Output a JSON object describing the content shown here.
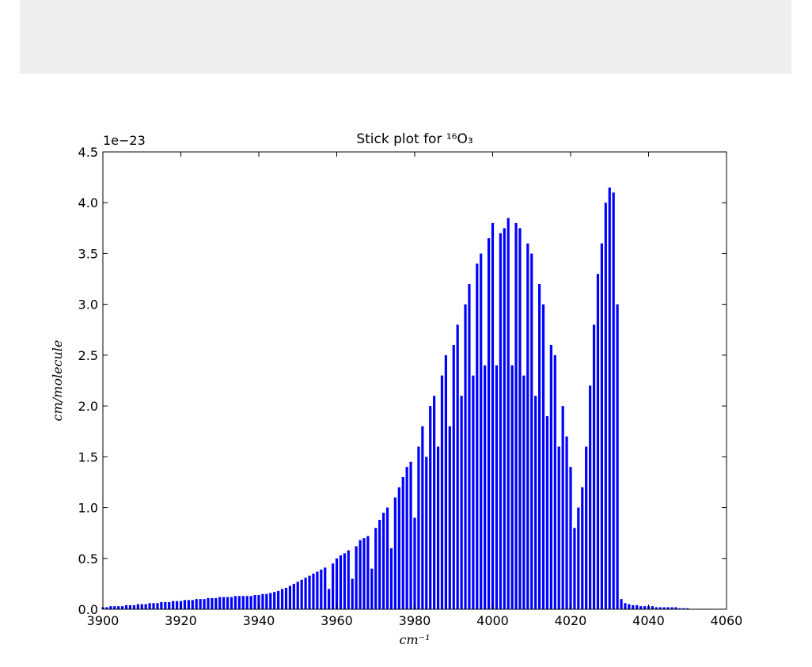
{
  "chart_data": {
    "type": "stick",
    "title": "Stick plot for ¹⁶O₃",
    "x_label": "cm⁻¹",
    "y_label": "cm/molecule",
    "y_offset_label": "1e−23",
    "color": "#0000ff",
    "xlim": [
      3900,
      4060
    ],
    "xticks": [
      3900,
      3920,
      3940,
      3960,
      3980,
      4000,
      4020,
      4040,
      4060
    ],
    "ylim": [
      0,
      4.5
    ],
    "yticks": [
      {
        "value": 0,
        "label": "0.0"
      },
      0.5,
      {
        "value": 1,
        "label": "1.0"
      },
      1.5,
      {
        "value": 2,
        "label": "2.0"
      },
      2.5,
      {
        "value": 3,
        "label": "3.0"
      },
      3.5,
      {
        "value": 4,
        "label": "4.0"
      },
      4.5
    ],
    "x": [
      3900,
      3901,
      3902,
      3903,
      3904,
      3905,
      3906,
      3907,
      3908,
      3909,
      3910,
      3911,
      3912,
      3913,
      3914,
      3915,
      3916,
      3917,
      3918,
      3919,
      3920,
      3921,
      3922,
      3923,
      3924,
      3925,
      3926,
      3927,
      3928,
      3929,
      3930,
      3931,
      3932,
      3933,
      3934,
      3935,
      3936,
      3937,
      3938,
      3939,
      3940,
      3941,
      3942,
      3943,
      3944,
      3945,
      3946,
      3947,
      3948,
      3949,
      3950,
      3951,
      3952,
      3953,
      3954,
      3955,
      3956,
      3957,
      3958,
      3959,
      3960,
      3961,
      3962,
      3963,
      3964,
      3965,
      3966,
      3967,
      3968,
      3969,
      3970,
      3971,
      3972,
      3973,
      3974,
      3975,
      3976,
      3977,
      3978,
      3979,
      3980,
      3981,
      3982,
      3983,
      3984,
      3985,
      3986,
      3987,
      3988,
      3989,
      3990,
      3991,
      3992,
      3993,
      3994,
      3995,
      3996,
      3997,
      3998,
      3999,
      4000,
      4001,
      4002,
      4003,
      4004,
      4005,
      4006,
      4007,
      4008,
      4009,
      4010,
      4011,
      4012,
      4013,
      4014,
      4015,
      4016,
      4017,
      4018,
      4019,
      4020,
      4021,
      4022,
      4023,
      4024,
      4025,
      4026,
      4027,
      4028,
      4029,
      4030,
      4031,
      4032,
      4033,
      4034,
      4035,
      4036,
      4037,
      4038,
      4039,
      4040,
      4041,
      4042,
      4043,
      4044,
      4045,
      4046,
      4047,
      4048,
      4049,
      4050
    ],
    "values": [
      0.02,
      0.02,
      0.03,
      0.03,
      0.03,
      0.03,
      0.04,
      0.04,
      0.04,
      0.05,
      0.05,
      0.05,
      0.06,
      0.06,
      0.06,
      0.07,
      0.07,
      0.07,
      0.08,
      0.08,
      0.08,
      0.09,
      0.09,
      0.09,
      0.1,
      0.1,
      0.1,
      0.11,
      0.11,
      0.11,
      0.12,
      0.12,
      0.12,
      0.12,
      0.13,
      0.13,
      0.13,
      0.13,
      0.13,
      0.14,
      0.14,
      0.15,
      0.15,
      0.16,
      0.17,
      0.18,
      0.2,
      0.21,
      0.23,
      0.25,
      0.27,
      0.29,
      0.31,
      0.33,
      0.35,
      0.37,
      0.39,
      0.41,
      0.2,
      0.45,
      0.5,
      0.53,
      0.55,
      0.58,
      0.3,
      0.62,
      0.68,
      0.7,
      0.72,
      0.4,
      0.8,
      0.88,
      0.95,
      1.0,
      0.6,
      1.1,
      1.2,
      1.3,
      1.4,
      1.45,
      0.9,
      1.6,
      1.8,
      1.5,
      2.0,
      2.1,
      1.6,
      2.3,
      2.5,
      1.8,
      2.6,
      2.8,
      2.1,
      3.0,
      3.2,
      2.3,
      3.4,
      3.5,
      2.4,
      3.65,
      3.8,
      2.4,
      3.7,
      3.75,
      3.85,
      2.4,
      3.8,
      3.75,
      2.3,
      3.6,
      3.5,
      2.1,
      3.2,
      3.0,
      1.9,
      2.6,
      2.5,
      1.6,
      2.0,
      1.7,
      1.4,
      0.8,
      1.0,
      1.2,
      1.6,
      2.2,
      2.8,
      3.3,
      3.6,
      4.0,
      4.15,
      4.1,
      3.0,
      0.1,
      0.06,
      0.05,
      0.04,
      0.04,
      0.03,
      0.03,
      0.03,
      0.03,
      0.02,
      0.02,
      0.02,
      0.02,
      0.02,
      0.02,
      0.01,
      0.01,
      0.01
    ]
  }
}
